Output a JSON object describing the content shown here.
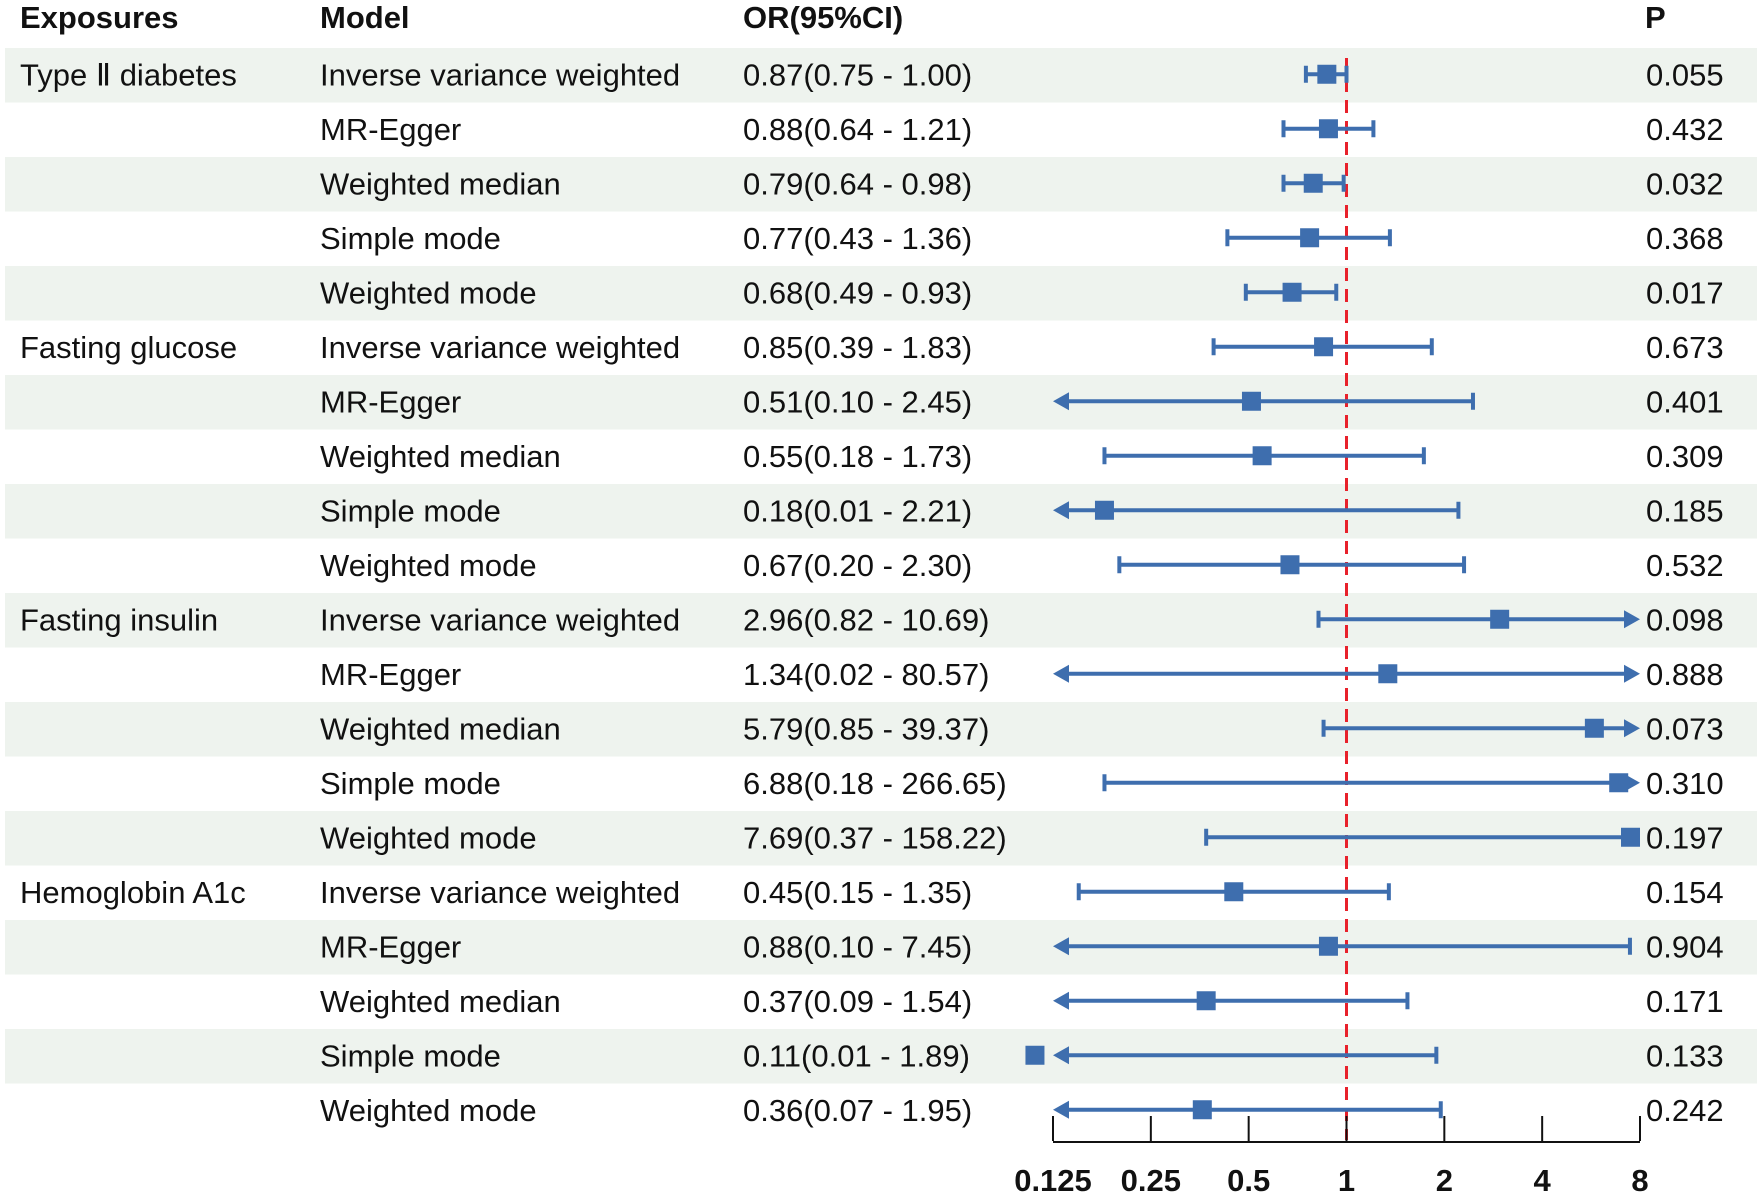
{
  "chart_data": {
    "type": "forest",
    "headers": {
      "exposure": "Exposures",
      "model": "Model",
      "or": "OR(95%CI)",
      "p": "P"
    },
    "x_scale": "log2",
    "x_range": [
      0.125,
      8
    ],
    "x_ticks": [
      {
        "value": 0.125,
        "label": "0.125"
      },
      {
        "value": 0.25,
        "label": "0.25"
      },
      {
        "value": 0.5,
        "label": "0.5"
      },
      {
        "value": 1,
        "label": "1"
      },
      {
        "value": 2,
        "label": "2"
      },
      {
        "value": 4,
        "label": "4"
      },
      {
        "value": 8,
        "label": "8"
      }
    ],
    "reference_line": 1,
    "colors": {
      "marker": "#3E6EAE",
      "reference": "#E8212B",
      "stripe": "#EEF3EE"
    },
    "rows": [
      {
        "exposure": "Type Ⅱ diabetes",
        "model": "Inverse variance weighted",
        "or": 0.87,
        "lower": 0.75,
        "upper": 1.0,
        "or_text": "0.87(0.75 - 1.00)",
        "p": "0.055"
      },
      {
        "exposure": "",
        "model": "MR-Egger",
        "or": 0.88,
        "lower": 0.64,
        "upper": 1.21,
        "or_text": "0.88(0.64 - 1.21)",
        "p": "0.432"
      },
      {
        "exposure": "",
        "model": "Weighted median",
        "or": 0.79,
        "lower": 0.64,
        "upper": 0.98,
        "or_text": "0.79(0.64 - 0.98)",
        "p": "0.032"
      },
      {
        "exposure": "",
        "model": "Simple mode",
        "or": 0.77,
        "lower": 0.43,
        "upper": 1.36,
        "or_text": "0.77(0.43 - 1.36)",
        "p": "0.368"
      },
      {
        "exposure": "",
        "model": "Weighted mode",
        "or": 0.68,
        "lower": 0.49,
        "upper": 0.93,
        "or_text": "0.68(0.49 - 0.93)",
        "p": "0.017"
      },
      {
        "exposure": "Fasting glucose",
        "model": "Inverse variance weighted",
        "or": 0.85,
        "lower": 0.39,
        "upper": 1.83,
        "or_text": "0.85(0.39 - 1.83)",
        "p": "0.673"
      },
      {
        "exposure": "",
        "model": "MR-Egger",
        "or": 0.51,
        "lower": 0.1,
        "upper": 2.45,
        "or_text": "0.51(0.10 - 2.45)",
        "p": "0.401"
      },
      {
        "exposure": "",
        "model": "Weighted median",
        "or": 0.55,
        "lower": 0.18,
        "upper": 1.73,
        "or_text": "0.55(0.18 - 1.73)",
        "p": "0.309"
      },
      {
        "exposure": "",
        "model": "Simple mode",
        "or": 0.18,
        "lower": 0.01,
        "upper": 2.21,
        "or_text": "0.18(0.01 - 2.21)",
        "p": "0.185"
      },
      {
        "exposure": "",
        "model": "Weighted mode",
        "or": 0.67,
        "lower": 0.2,
        "upper": 2.3,
        "or_text": "0.67(0.20 - 2.30)",
        "p": "0.532"
      },
      {
        "exposure": "Fasting insulin",
        "model": "Inverse variance weighted",
        "or": 2.96,
        "lower": 0.82,
        "upper": 10.69,
        "or_text": "2.96(0.82 - 10.69)",
        "p": "0.098"
      },
      {
        "exposure": "",
        "model": "MR-Egger",
        "or": 1.34,
        "lower": 0.02,
        "upper": 80.57,
        "or_text": "1.34(0.02 - 80.57)",
        "p": "0.888"
      },
      {
        "exposure": "",
        "model": "Weighted median",
        "or": 5.79,
        "lower": 0.85,
        "upper": 39.37,
        "or_text": "5.79(0.85 - 39.37)",
        "p": "0.073"
      },
      {
        "exposure": "",
        "model": "Simple mode",
        "or": 6.88,
        "lower": 0.18,
        "upper": 266.65,
        "or_text": "6.88(0.18 - 266.65)",
        "p": "0.310"
      },
      {
        "exposure": "",
        "model": "Weighted mode",
        "or": 7.69,
        "lower": 0.37,
        "upper": 158.22,
        "or_text": "7.69(0.37 - 158.22)",
        "p": "0.197"
      },
      {
        "exposure": "Hemoglobin A1c",
        "model": "Inverse variance weighted",
        "or": 0.45,
        "lower": 0.15,
        "upper": 1.35,
        "or_text": "0.45(0.15 - 1.35)",
        "p": "0.154"
      },
      {
        "exposure": "",
        "model": "MR-Egger",
        "or": 0.88,
        "lower": 0.1,
        "upper": 7.45,
        "or_text": "0.88(0.10 - 7.45)",
        "p": "0.904"
      },
      {
        "exposure": "",
        "model": "Weighted median",
        "or": 0.37,
        "lower": 0.09,
        "upper": 1.54,
        "or_text": "0.37(0.09 - 1.54)",
        "p": "0.171"
      },
      {
        "exposure": "",
        "model": "Simple mode",
        "or": 0.11,
        "lower": 0.01,
        "upper": 1.89,
        "or_text": "0.11(0.01 - 1.89)",
        "p": "0.133"
      },
      {
        "exposure": "",
        "model": "Weighted mode",
        "or": 0.36,
        "lower": 0.07,
        "upper": 1.95,
        "or_text": "0.36(0.07 - 1.95)",
        "p": "0.242"
      }
    ]
  }
}
